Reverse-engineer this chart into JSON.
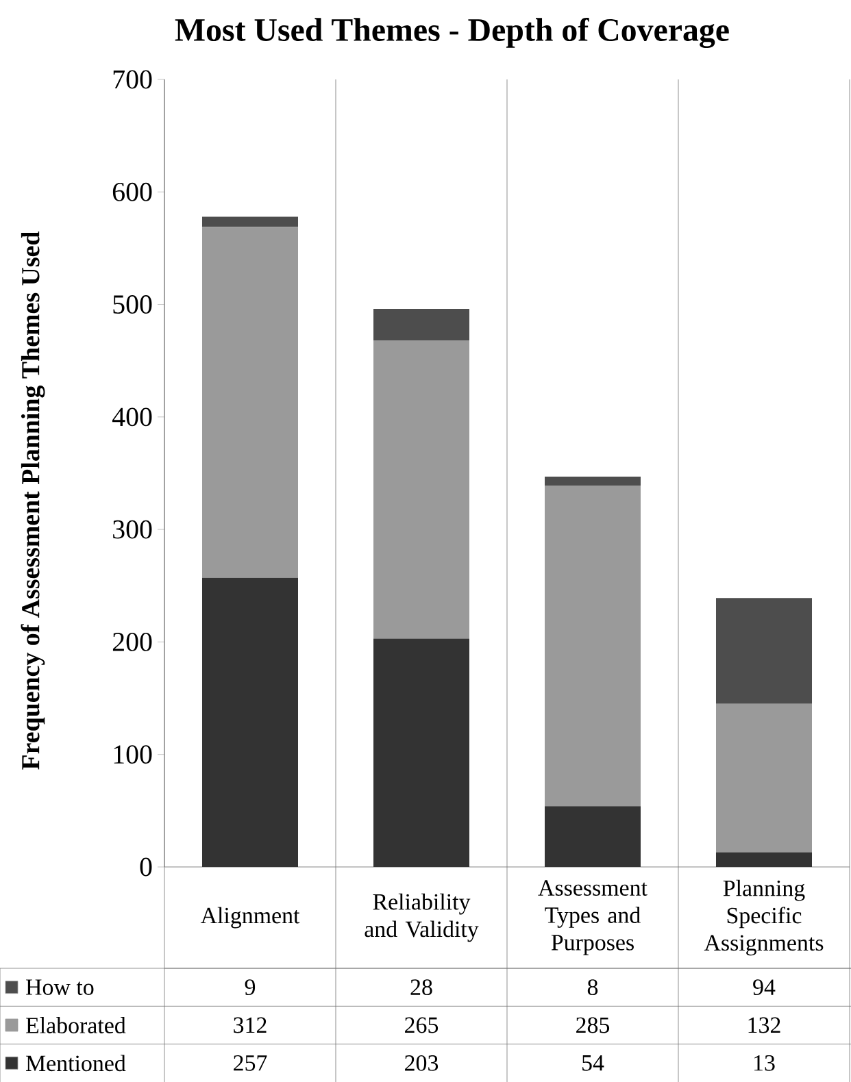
{
  "chart_data": {
    "type": "bar",
    "stacked": true,
    "title": "Most Used Themes - Depth of Coverage",
    "ylabel": "Frequency of Assessment Planning Themes Used",
    "categories": [
      "Alignment",
      "Reliability and Validity",
      "Assessment Types and Purposes",
      "Planning Specific Assignments"
    ],
    "series": [
      {
        "name": "Mentioned",
        "color": "#333333",
        "values": [
          257,
          203,
          54,
          13
        ]
      },
      {
        "name": "Elaborated",
        "color": "#9a9a9a",
        "values": [
          312,
          265,
          285,
          132
        ]
      },
      {
        "name": "How to",
        "color": "#4d4d4d",
        "values": [
          9,
          28,
          8,
          94
        ]
      }
    ],
    "ylim": [
      0,
      700
    ],
    "yticks": [
      0,
      100,
      200,
      300,
      400,
      500,
      600,
      700
    ],
    "data_labels": true,
    "legend": "bottom"
  }
}
